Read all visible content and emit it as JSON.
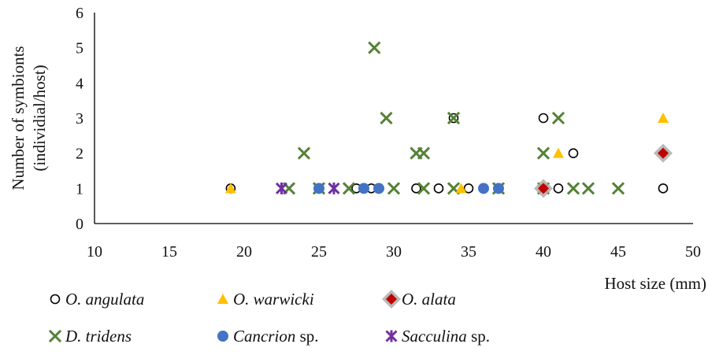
{
  "chart_data": {
    "type": "scatter",
    "title": "",
    "xlabel": "Host size (mm)",
    "ylabel": [
      "Number of symbionts",
      "(individial/host)"
    ],
    "xlim": [
      10,
      50
    ],
    "ylim": [
      0,
      6
    ],
    "xticks": [
      "10",
      "15",
      "20",
      "25",
      "30",
      "35",
      "40",
      "45",
      "50"
    ],
    "yticks": [
      "0",
      "1",
      "2",
      "3",
      "4",
      "5",
      "6"
    ],
    "grid": false,
    "legend_position": "bottom",
    "series": [
      {
        "name": "O. angulata",
        "marker": "circle-open",
        "color": "#000000",
        "points": [
          [
            19.1,
            1
          ],
          [
            27.5,
            1
          ],
          [
            28.5,
            1
          ],
          [
            31.5,
            1
          ],
          [
            33,
            1
          ],
          [
            35,
            1
          ],
          [
            34,
            3
          ],
          [
            40,
            3
          ],
          [
            41,
            1
          ],
          [
            42,
            2
          ],
          [
            48,
            1
          ]
        ]
      },
      {
        "name": "O. warwicki",
        "marker": "triangle",
        "color": "#FFC000",
        "points": [
          [
            19.1,
            1
          ],
          [
            34.5,
            1
          ],
          [
            41,
            2
          ],
          [
            48,
            3
          ]
        ]
      },
      {
        "name": "O. alata",
        "marker": "diamond",
        "color": "#C00000",
        "points": [
          [
            40,
            1
          ],
          [
            48,
            2
          ]
        ]
      },
      {
        "name": "D. tridens",
        "marker": "x",
        "color": "#548235",
        "points": [
          [
            23,
            1
          ],
          [
            24,
            2
          ],
          [
            25,
            1
          ],
          [
            27,
            1
          ],
          [
            28.7,
            5
          ],
          [
            29.5,
            3
          ],
          [
            30,
            1
          ],
          [
            31.5,
            2
          ],
          [
            32,
            2
          ],
          [
            32,
            1
          ],
          [
            34,
            3
          ],
          [
            34,
            1
          ],
          [
            37,
            1
          ],
          [
            40,
            2
          ],
          [
            40,
            1
          ],
          [
            41,
            3
          ],
          [
            42,
            1
          ],
          [
            43,
            1
          ],
          [
            45,
            1
          ]
        ]
      },
      {
        "name": "Cancrion sp.",
        "marker": "circle-filled",
        "color": "#4472C4",
        "points": [
          [
            25,
            1
          ],
          [
            28,
            1
          ],
          [
            29,
            1
          ],
          [
            36,
            1
          ],
          [
            37,
            1
          ]
        ]
      },
      {
        "name": "Sacculina sp.",
        "marker": "asterisk",
        "color": "#7030A0",
        "points": [
          [
            22.5,
            1
          ],
          [
            26,
            1
          ]
        ]
      }
    ]
  },
  "legend": {
    "items": [
      {
        "italic": "O. angulata",
        "upright": ""
      },
      {
        "italic": "O. warwicki",
        "upright": ""
      },
      {
        "italic": "O. alata",
        "upright": ""
      },
      {
        "italic": "D. tridens",
        "upright": ""
      },
      {
        "italic": "Cancrion",
        "upright": " sp."
      },
      {
        "italic": "Sacculina",
        "upright": " sp."
      }
    ]
  }
}
